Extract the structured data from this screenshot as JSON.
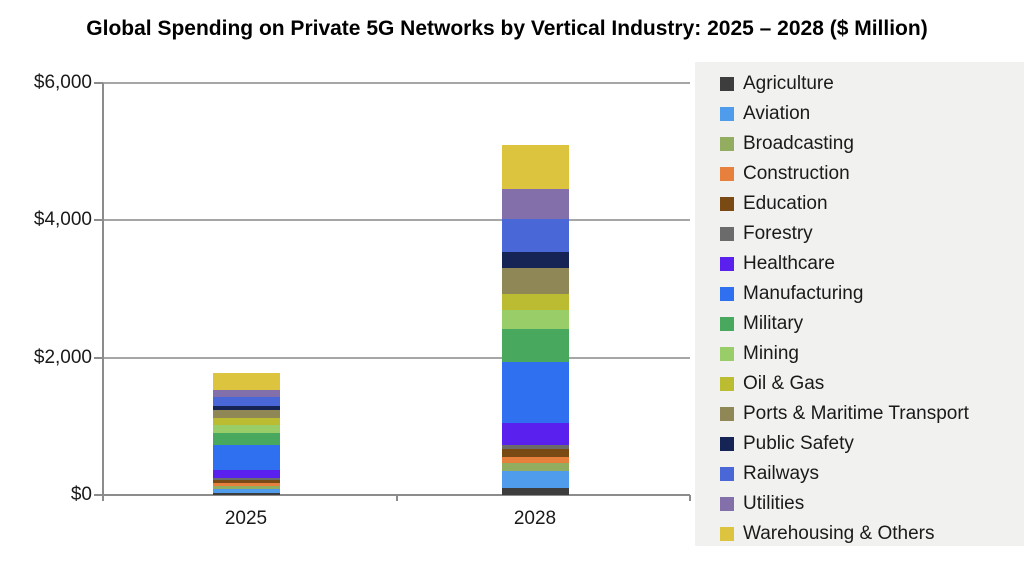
{
  "chart_data": {
    "type": "bar",
    "stacked": true,
    "title": "Global Spending on Private 5G Networks by Vertical Industry: 2025 – 2028 ($ Million)",
    "categories": [
      "2025",
      "2028"
    ],
    "series": [
      {
        "name": "Agriculture",
        "color": "#3d3d3d",
        "values": [
          25,
          100
        ]
      },
      {
        "name": "Aviation",
        "color": "#4f9bec",
        "values": [
          70,
          250
        ]
      },
      {
        "name": "Broadcasting",
        "color": "#93ad60",
        "values": [
          30,
          115
        ]
      },
      {
        "name": "Construction",
        "color": "#e8803d",
        "values": [
          55,
          90
        ]
      },
      {
        "name": "Education",
        "color": "#7a4a15",
        "values": [
          45,
          115
        ]
      },
      {
        "name": "Forestry",
        "color": "#6b6b6b",
        "values": [
          30,
          60
        ]
      },
      {
        "name": "Healthcare",
        "color": "#5a21ee",
        "values": [
          115,
          320
        ]
      },
      {
        "name": "Manufacturing",
        "color": "#2e70f0",
        "values": [
          360,
          890
        ]
      },
      {
        "name": "Military",
        "color": "#48a85e",
        "values": [
          175,
          480
        ]
      },
      {
        "name": "Mining",
        "color": "#98cd68",
        "values": [
          115,
          275
        ]
      },
      {
        "name": "Oil & Gas",
        "color": "#bcbc33",
        "values": [
          100,
          230
        ]
      },
      {
        "name": "Ports & Maritime Transport",
        "color": "#8f8755",
        "values": [
          115,
          380
        ]
      },
      {
        "name": "Public Safety",
        "color": "#152455",
        "values": [
          70,
          230
        ]
      },
      {
        "name": "Railways",
        "color": "#4a67d7",
        "values": [
          130,
          480
        ]
      },
      {
        "name": "Utilities",
        "color": "#8370ab",
        "values": [
          90,
          440
        ]
      },
      {
        "name": "Warehousing & Others",
        "color": "#ddc43e",
        "values": [
          260,
          640
        ]
      }
    ],
    "xlabel": "",
    "ylabel": "",
    "ylim": [
      0,
      6000
    ],
    "yticks": [
      {
        "value": 0,
        "label": "$0"
      },
      {
        "value": 2000,
        "label": "$2,000"
      },
      {
        "value": 4000,
        "label": "$4,000"
      },
      {
        "value": 6000,
        "label": "$6,000"
      }
    ],
    "grid": true,
    "legend_position": "right"
  },
  "colors": {
    "gridline": "#a6a6a6",
    "axis": "#8c8c8c",
    "legend_background": "#f1f1f0",
    "text": "#1a1a1a"
  }
}
